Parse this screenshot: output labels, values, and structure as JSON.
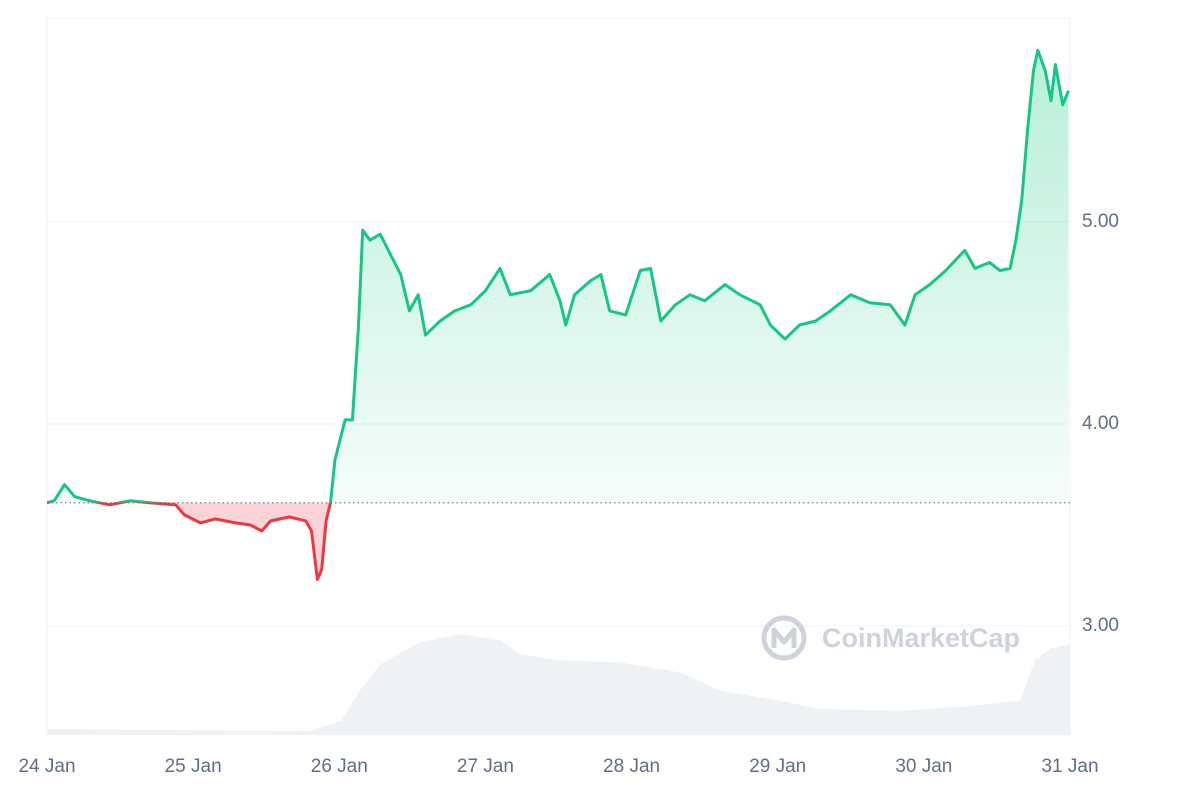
{
  "chart_data": {
    "type": "line",
    "x": [
      0,
      0.05,
      0.12,
      0.19,
      0.29,
      0.43,
      0.57,
      0.7,
      0.88,
      0.94,
      1.05,
      1.15,
      1.29,
      1.39,
      1.47,
      1.53,
      1.66,
      1.77,
      1.81,
      1.85,
      1.88,
      1.91,
      1.94,
      1.97,
      2.04,
      2.09,
      2.13,
      2.16,
      2.21,
      2.28,
      2.35,
      2.42,
      2.48,
      2.54,
      2.59,
      2.69,
      2.79,
      2.9,
      3.0,
      3.1,
      3.17,
      3.31,
      3.44,
      3.51,
      3.55,
      3.61,
      3.72,
      3.79,
      3.85,
      3.96,
      4.06,
      4.13,
      4.2,
      4.3,
      4.4,
      4.5,
      4.64,
      4.74,
      4.88,
      4.95,
      5.05,
      5.15,
      5.26,
      5.36,
      5.5,
      5.63,
      5.77,
      5.87,
      5.94,
      6.04,
      6.15,
      6.28,
      6.35,
      6.45,
      6.52,
      6.59,
      6.63,
      6.67,
      6.71,
      6.75,
      6.78,
      6.83,
      6.87,
      6.9,
      6.95,
      6.99
    ],
    "values": [
      3.61,
      3.62,
      3.7,
      3.64,
      3.62,
      3.6,
      3.62,
      3.61,
      3.6,
      3.55,
      3.51,
      3.53,
      3.51,
      3.5,
      3.47,
      3.52,
      3.54,
      3.52,
      3.47,
      3.23,
      3.28,
      3.52,
      3.61,
      3.82,
      4.02,
      4.02,
      4.47,
      4.96,
      4.91,
      4.94,
      4.84,
      4.74,
      4.56,
      4.64,
      4.44,
      4.51,
      4.56,
      4.59,
      4.66,
      4.77,
      4.64,
      4.66,
      4.74,
      4.61,
      4.49,
      4.64,
      4.71,
      4.74,
      4.56,
      4.54,
      4.76,
      4.77,
      4.51,
      4.59,
      4.64,
      4.61,
      4.69,
      4.64,
      4.59,
      4.49,
      4.42,
      4.49,
      4.51,
      4.56,
      4.64,
      4.6,
      4.59,
      4.49,
      4.64,
      4.69,
      4.76,
      4.86,
      4.77,
      4.8,
      4.76,
      4.77,
      4.91,
      5.11,
      5.46,
      5.75,
      5.85,
      5.75,
      5.6,
      5.78,
      5.58,
      5.65
    ],
    "baseline": 3.61,
    "up_color": "#16c784",
    "down_color": "#ea3943",
    "volume": {
      "x": [
        0,
        1.73,
        1.8,
        2.01,
        2.14,
        2.28,
        2.55,
        2.83,
        3.1,
        3.24,
        3.51,
        3.92,
        4.33,
        4.61,
        5.02,
        5.29,
        5.84,
        6.25,
        6.66,
        6.76,
        6.87,
        7.0
      ],
      "values": [
        2.49,
        2.48,
        2.48,
        2.53,
        2.68,
        2.81,
        2.92,
        2.96,
        2.93,
        2.86,
        2.83,
        2.82,
        2.77,
        2.68,
        2.63,
        2.59,
        2.58,
        2.6,
        2.63,
        2.83,
        2.89,
        2.91
      ],
      "color": "#eff2f5"
    },
    "xlim": [
      0,
      7
    ],
    "xticks": [
      {
        "value": 0,
        "label": "24 Jan"
      },
      {
        "value": 1,
        "label": "25 Jan"
      },
      {
        "value": 2,
        "label": "26 Jan"
      },
      {
        "value": 3,
        "label": "27 Jan"
      },
      {
        "value": 4,
        "label": "28 Jan"
      },
      {
        "value": 5,
        "label": "29 Jan"
      },
      {
        "value": 6,
        "label": "30 Jan"
      },
      {
        "value": 7,
        "label": "31 Jan"
      }
    ],
    "ylim": [
      2.46,
      6.01
    ],
    "yticks": [
      {
        "value": 3,
        "label": "3.00"
      },
      {
        "value": 4,
        "label": "4.00"
      },
      {
        "value": 5,
        "label": "5.00"
      }
    ],
    "grid": true,
    "watermark": "CoinMarketCap"
  }
}
